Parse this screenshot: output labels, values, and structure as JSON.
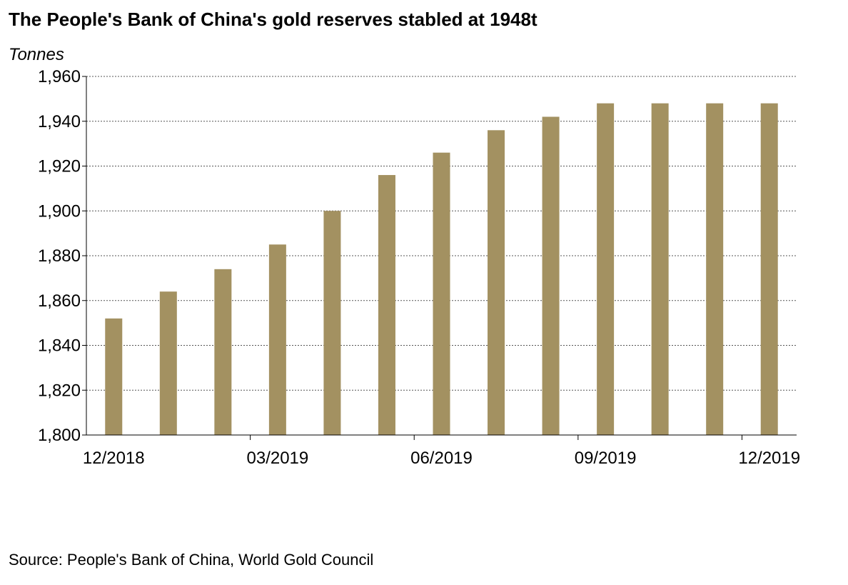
{
  "title": "The People's Bank of China's gold reserves stabled at 1948t",
  "source": "Source: People's Bank of China, World Gold Council",
  "colors": {
    "bar": "#a39161",
    "grid": "#555555",
    "axis": "#000000"
  },
  "chart_data": {
    "type": "bar",
    "title": "The People's Bank of China's gold reserves stabled at 1948t",
    "ylabel": "Tonnes",
    "xlabel": "",
    "ylim": [
      1800,
      1960
    ],
    "yticks": [
      1800,
      1820,
      1840,
      1860,
      1880,
      1900,
      1920,
      1940,
      1960
    ],
    "ytick_labels": [
      "1,800",
      "1,820",
      "1,840",
      "1,860",
      "1,880",
      "1,900",
      "1,920",
      "1,940",
      "1,960"
    ],
    "categories": [
      "12/2018",
      "01/2019",
      "02/2019",
      "03/2019",
      "04/2019",
      "05/2019",
      "06/2019",
      "07/2019",
      "08/2019",
      "09/2019",
      "10/2019",
      "11/2019",
      "12/2019"
    ],
    "xtick_labels": [
      "12/2018",
      "03/2019",
      "06/2019",
      "09/2019",
      "12/2019"
    ],
    "values": [
      1852,
      1864,
      1874,
      1885,
      1900,
      1916,
      1926,
      1936,
      1942,
      1948,
      1948,
      1948,
      1948
    ],
    "grid": true,
    "grid_style": "dashed",
    "legend": "none"
  }
}
